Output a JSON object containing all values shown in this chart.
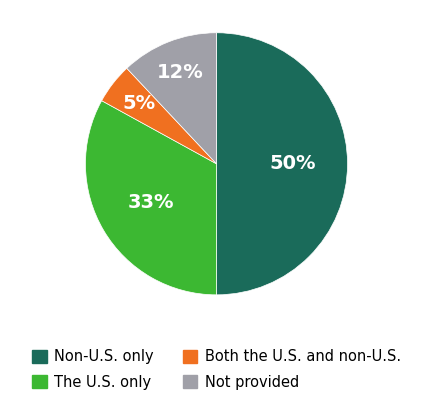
{
  "labels": [
    "Non-U.S. only",
    "The U.S. only",
    "Both the U.S. and non-U.S.",
    "Not provided"
  ],
  "values": [
    50,
    33,
    5,
    12
  ],
  "colors": [
    "#1a6b5a",
    "#3cb832",
    "#f07020",
    "#a0a0a8"
  ],
  "pct_labels": [
    "50%",
    "33%",
    "5%",
    "12%"
  ],
  "legend_labels_col1": [
    "Non-U.S. only",
    "Both the U.S. and non-U.S."
  ],
  "legend_labels_col2": [
    "The U.S. only",
    "Not provided"
  ],
  "startangle": 90,
  "text_color": "#ffffff",
  "label_fontsize": 14,
  "legend_fontsize": 10.5,
  "label_radii": [
    0.58,
    0.58,
    0.75,
    0.75
  ]
}
